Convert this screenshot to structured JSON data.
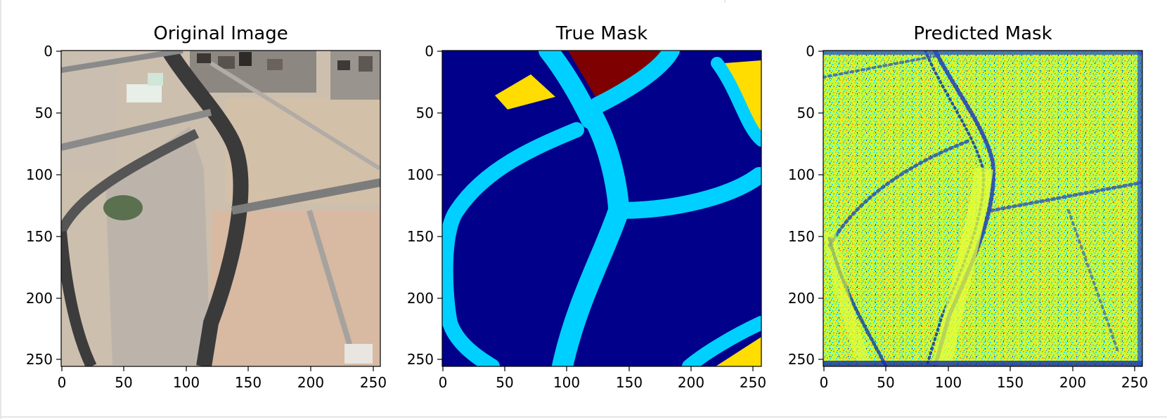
{
  "figure": {
    "panels": [
      {
        "title": "Original Image",
        "kind": "satellite-photo",
        "x_ticks": [
          "0",
          "50",
          "100",
          "150",
          "200",
          "250"
        ],
        "y_ticks": [
          "0",
          "50",
          "100",
          "150",
          "200",
          "250"
        ]
      },
      {
        "title": "True Mask",
        "kind": "segmentation-mask",
        "x_ticks": [
          "0",
          "50",
          "100",
          "150",
          "200",
          "250"
        ],
        "y_ticks": [
          "0",
          "50",
          "100",
          "150",
          "200",
          "250"
        ]
      },
      {
        "title": "Predicted Mask",
        "kind": "noisy-prediction-heatmap",
        "x_ticks": [
          "0",
          "50",
          "100",
          "150",
          "200",
          "250"
        ],
        "y_ticks": [
          "0",
          "50",
          "100",
          "150",
          "200",
          "250"
        ]
      }
    ],
    "axis_range": [
      0,
      256
    ],
    "colors": {
      "mask_background": "#00008b",
      "mask_road": "#00d0ff",
      "mask_building": "#7f0000",
      "mask_land": "#ffdd00",
      "pred_base": "#c8ff3a",
      "pred_noise_a": "#ffc000",
      "pred_noise_b": "#30e0e0",
      "pred_noise_c": "#0030c0",
      "photo_sand": "#cdbfae",
      "photo_road": "#3a3a3a",
      "photo_veg": "#4f6a48"
    }
  }
}
